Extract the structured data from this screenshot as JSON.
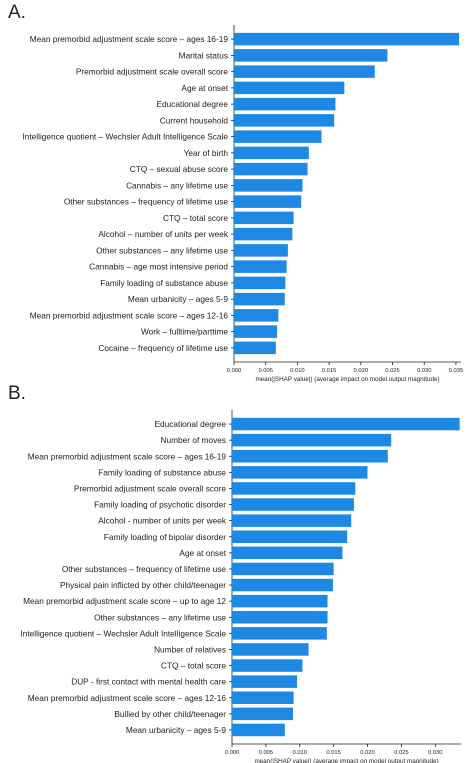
{
  "panels": [
    {
      "letter": "A."
    },
    {
      "letter": "B."
    }
  ],
  "colors": {
    "bar": "#1e88e5",
    "axis": "#222222"
  },
  "chart_data": [
    {
      "type": "bar",
      "orientation": "horizontal",
      "categories": [
        "Mean premorbid adjustment scale score – ages 16-19",
        "Marital status",
        "Premorbid adjustment scale overall score",
        "Age at onset",
        "Educational degree",
        "Current household",
        "Intelligence quotient – Wechsler Adult Intelligence Scale",
        "Year of birth",
        "CTQ – sexual abuse score",
        "Cannabis – any lifetime use",
        "Other substances – frequency of lifetime use",
        "CTQ – total score",
        "Alcohol – number of units per week",
        "Other substances – any lifetime use",
        "Cannabis – age most intensive period",
        "Family loading of substance abuse",
        "Mean urbanicity – ages 5-9",
        "Mean premorbid adjustment scale score – ages 12-16",
        "Work – fulltime/parttime",
        "Cocaine – frequency of lifetime use"
      ],
      "values": [
        0.0355,
        0.0242,
        0.0222,
        0.0174,
        0.016,
        0.0158,
        0.0138,
        0.0118,
        0.0116,
        0.0108,
        0.0106,
        0.0094,
        0.0092,
        0.0085,
        0.0083,
        0.0081,
        0.008,
        0.007,
        0.0068,
        0.0066
      ],
      "xticks": [
        "0.000",
        "0.005",
        "0.010",
        "0.015",
        "0.020",
        "0.025",
        "0.030",
        "0.035"
      ],
      "xlabel": "mean(|SHAP value|) (average impact on model output magnitude)",
      "xlim": [
        0,
        0.0358
      ],
      "grid": false
    },
    {
      "type": "bar",
      "orientation": "horizontal",
      "categories": [
        "Educational degree",
        "Number of moves",
        "Mean premorbid adjustment scale score – ages 16-19",
        "Family loading of substance abuse",
        "Premorbid adjustment scale overall score",
        "Family loading of psychotic disorder",
        "Alcohol - number of units per week",
        "Family loading of bipolar disorder",
        "Age at onset",
        "Other substances – frequency of lifetime use",
        "Physical pain inflicted by other child/teenager",
        "Mean premorbid adjustment scale score – up to age 12",
        "Other substances – any lifetime use",
        "Intelligence quotient – Wechsler Adult Intelligence Scale",
        "Number of relatives",
        "CTQ – total score",
        "DUP - first contact with mental health care",
        "Mean premorbid adjustment scale score – ages 12-16",
        "Bullied by other child/teenager",
        "Mean urbanicity – ages 5-9"
      ],
      "values": [
        0.0336,
        0.0235,
        0.023,
        0.02,
        0.0182,
        0.018,
        0.0176,
        0.017,
        0.0163,
        0.015,
        0.0149,
        0.0141,
        0.0141,
        0.014,
        0.0113,
        0.0104,
        0.0096,
        0.0091,
        0.009,
        0.0078
      ],
      "xticks": [
        "0.000",
        "0.005",
        "0.010",
        "0.015",
        "0.020",
        "0.025",
        "0.030"
      ],
      "xlabel": "mean(|SHAP value|) (average impact on model output magnitude)",
      "xlim": [
        0,
        0.0338
      ],
      "grid": false
    }
  ]
}
